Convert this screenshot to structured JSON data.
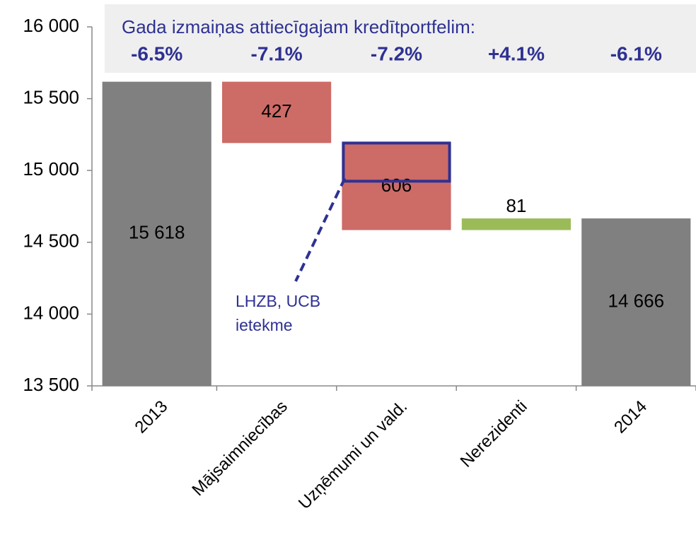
{
  "chart_data": {
    "type": "waterfall",
    "categories": [
      "2013",
      "Mājsaimniecības",
      "Uzņēmumi un vald.",
      "Nerezidenti",
      "2014"
    ],
    "values": [
      15618,
      427,
      606,
      81,
      14666
    ],
    "measure": [
      "absolute",
      "decrease",
      "decrease",
      "increase",
      "absolute"
    ],
    "value_labels": [
      "15 618",
      "427",
      "606",
      "81",
      "14 666"
    ],
    "colors": {
      "absolute": "#808080",
      "decrease": "#cd6b67",
      "increase": "#9bbb59"
    },
    "ylim": [
      13500,
      16000
    ],
    "yticks": [
      {
        "value": 13500,
        "label": "13 500"
      },
      {
        "value": 14000,
        "label": "14 000"
      },
      {
        "value": 14500,
        "label": "14 500"
      },
      {
        "value": 15000,
        "label": "15 000"
      },
      {
        "value": 15500,
        "label": "15 500"
      },
      {
        "value": 16000,
        "label": "16 000"
      }
    ],
    "header": "Gada izmaiņas attiecīgajam kredītportfelim:",
    "changes": [
      {
        "value": -6.5,
        "label": "-6.5%"
      },
      {
        "value": -7.1,
        "label": "-7.1%"
      },
      {
        "value": -7.2,
        "label": "-7.2%"
      },
      {
        "value": 4.1,
        "label": "+4.1%"
      },
      {
        "value": -6.1,
        "label": "-6.1%"
      }
    ],
    "annotation": [
      "LHZB, UCB",
      "ietekme"
    ]
  }
}
